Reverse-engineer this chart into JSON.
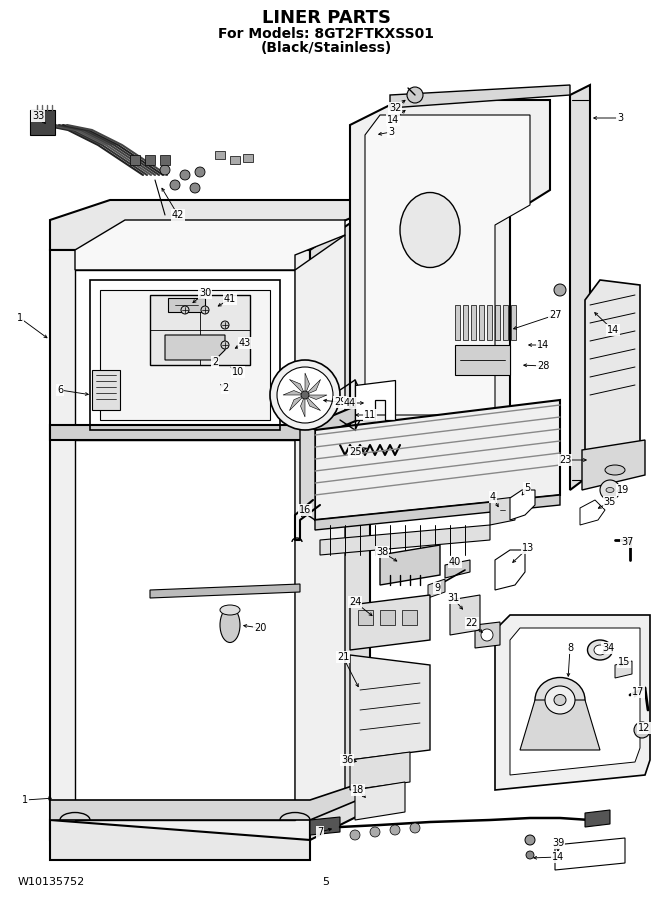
{
  "title_line1": "LINER PARTS",
  "title_line2": "For Models: 8GT2FTKXSS01",
  "title_line3": "(Black/Stainless)",
  "footer_left": "W10135752",
  "footer_center": "5",
  "bg_color": "#ffffff",
  "fig_width": 6.52,
  "fig_height": 9.0,
  "dpi": 100
}
